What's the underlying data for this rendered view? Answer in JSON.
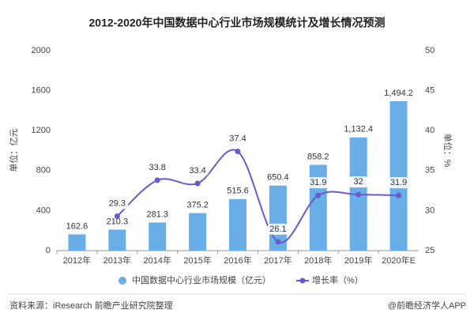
{
  "chart_data": {
    "type": "bar",
    "title": "2012-2020年中国数据中心行业市场规模统计及增长情况预测",
    "categories": [
      "2012年",
      "2013年",
      "2014年",
      "2015年",
      "2016年",
      "2017年",
      "2018年",
      "2019年",
      "2020年E"
    ],
    "series": [
      {
        "name": "中国数据中心行业市场规模（亿元）",
        "type": "bar",
        "color": "#6aaee8",
        "values": [
          162.6,
          210.3,
          281.3,
          375.2,
          515.6,
          650.4,
          858.2,
          1132.4,
          1494.2
        ],
        "value_labels": [
          "162.6",
          "210.3",
          "281.3",
          "375.2",
          "515.6",
          "650.4",
          "858.2",
          "1,132.4",
          "1,494.2"
        ]
      },
      {
        "name": "增长率（%）",
        "type": "line",
        "axis": "y2",
        "color": "#6a5acd",
        "values": [
          null,
          29.3,
          33.8,
          33.4,
          37.4,
          26.1,
          31.9,
          32,
          31.9
        ]
      }
    ],
    "ylabel": "单位：亿元",
    "y2label": "单位：%",
    "ylim": [
      0,
      2000
    ],
    "yticks": [
      0,
      400,
      800,
      1200,
      1600,
      2000
    ],
    "y2lim": [
      25,
      50
    ],
    "y2ticks": [
      25,
      30,
      35,
      40,
      45,
      50
    ],
    "grid": false,
    "legend": "bottom",
    "source": "资料来源：iResearch 前瞻产业研究院整理",
    "footer": "@前瞻经济学人APP"
  }
}
